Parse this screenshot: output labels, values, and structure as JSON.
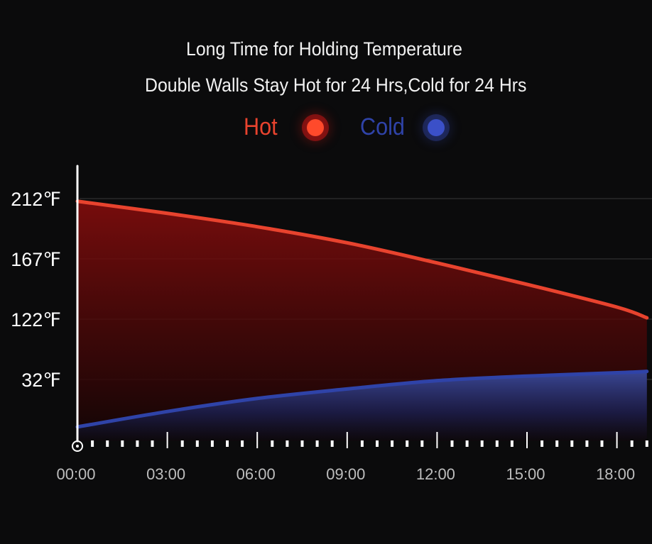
{
  "title": "Long Time for Holding Temperature",
  "subtitle": "Double Walls Stay Hot for 24 Hrs,Cold for 24 Hrs",
  "legend": {
    "hot_label": "Hot",
    "cold_label": "Cold"
  },
  "colors": {
    "hot": "#e8432e",
    "cold": "#2f43a8",
    "background": "#0b0b0c",
    "grid": "#3a3a3a"
  },
  "chart_data": {
    "type": "area",
    "title": "Long Time for Holding Temperature",
    "subtitle": "Double Walls Stay Hot for 24 Hrs,Cold for 24 Hrs",
    "xlabel": "",
    "ylabel": "",
    "x_ticks": [
      "00:00",
      "03:00",
      "06:00",
      "09:00",
      "12:00",
      "15:00",
      "18:00"
    ],
    "y_ticks": [
      "212℉",
      "167℉",
      "122℉",
      "32℉"
    ],
    "grid": true,
    "legend_position": "top-center",
    "series": [
      {
        "name": "Hot",
        "color": "#e8432e",
        "x": [
          "00:00",
          "03:00",
          "06:00",
          "09:00",
          "12:00",
          "15:00",
          "18:00",
          "19:00"
        ],
        "y": [
          210,
          201,
          191,
          179,
          164,
          148,
          131,
          123
        ]
      },
      {
        "name": "Cold",
        "color": "#2f43a8",
        "x": [
          "00:00",
          "03:00",
          "06:00",
          "09:00",
          "12:00",
          "15:00",
          "18:00",
          "19:00"
        ],
        "y": [
          -8,
          5,
          16,
          24,
          31,
          37,
          42,
          44
        ]
      }
    ]
  }
}
